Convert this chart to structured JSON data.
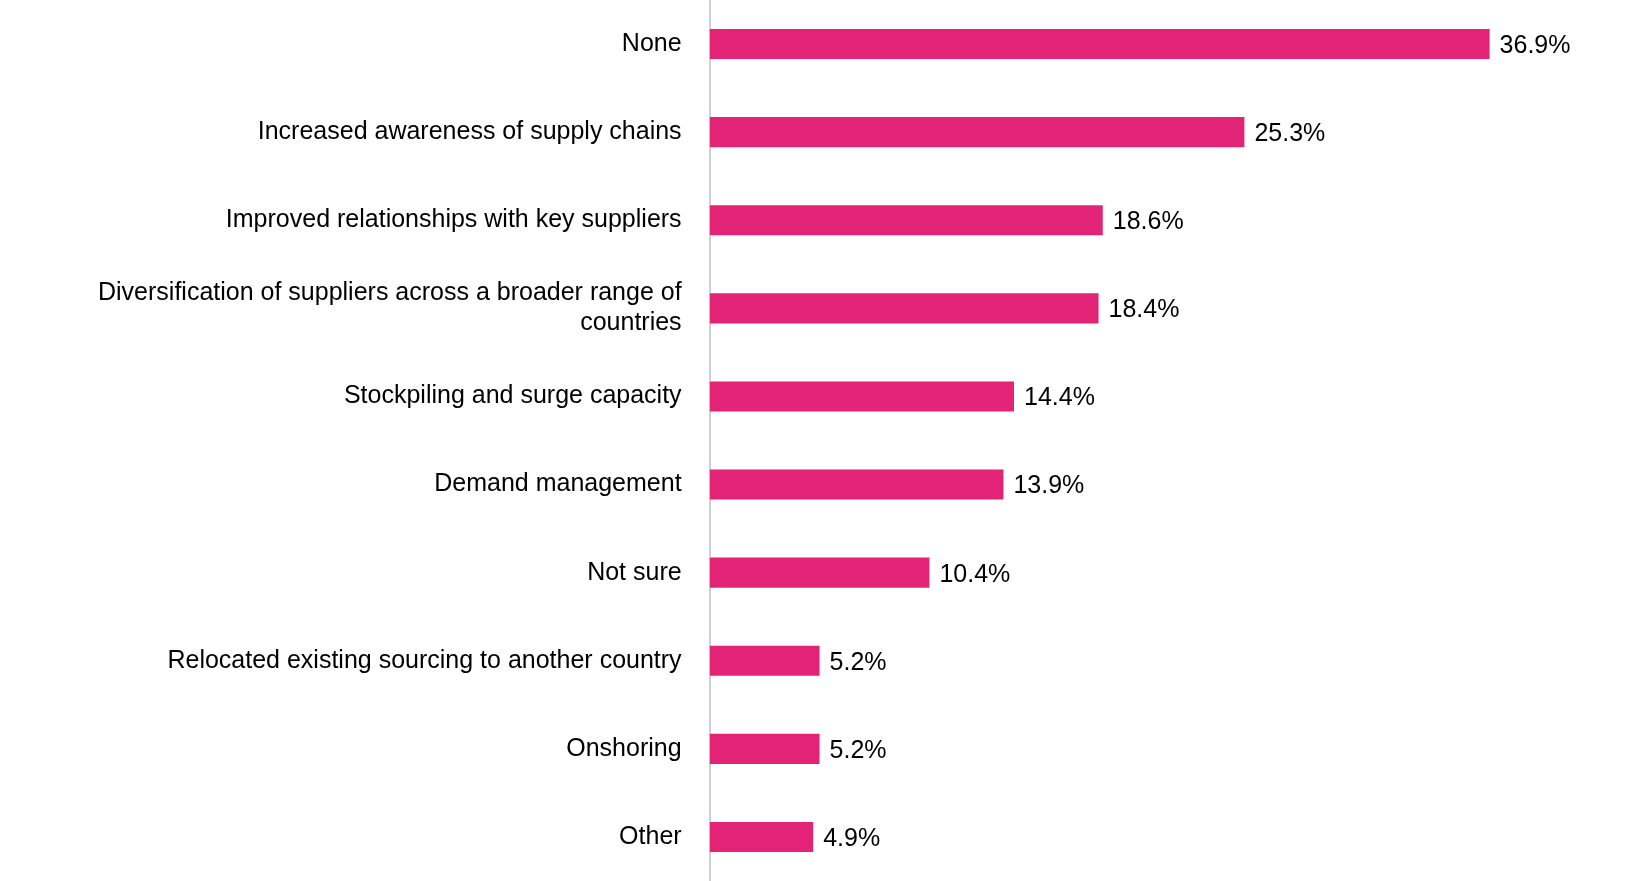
{
  "chart_data": {
    "type": "bar",
    "orientation": "horizontal",
    "categories": [
      "None",
      "Increased awareness of supply chains",
      "Improved relationships with key suppliers",
      "Diversification of suppliers across a broader range of countries",
      "Stockpiling and surge capacity",
      "Demand management",
      "Not sure",
      "Relocated existing sourcing to another country",
      "Onshoring",
      "Other"
    ],
    "values": [
      36.9,
      25.3,
      18.6,
      18.4,
      14.4,
      13.9,
      10.4,
      5.2,
      5.2,
      4.9
    ],
    "value_labels": [
      "36.9%",
      "25.3%",
      "18.6%",
      "18.4%",
      "14.4%",
      "13.9%",
      "10.4%",
      "5.2%",
      "5.2%",
      "4.9%"
    ],
    "color": "#e32476"
  }
}
